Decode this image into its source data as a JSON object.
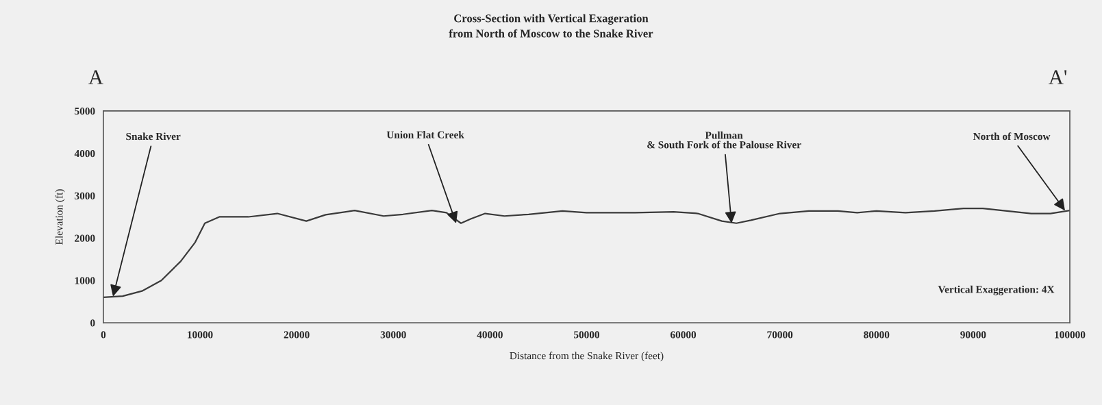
{
  "chart_data": {
    "type": "line",
    "title": "Cross-Section with Vertical Exageration\nfrom North of Moscow to the Snake River",
    "xlabel": "Distance from the Snake River (feet)",
    "ylabel": "Elevation (ft)",
    "x": [
      0,
      2000,
      4000,
      6000,
      8000,
      9500,
      10500,
      12000,
      15000,
      18000,
      21000,
      23000,
      26000,
      29000,
      31000,
      34000,
      35500,
      37000,
      38000,
      39500,
      41500,
      44000,
      47500,
      50000,
      55000,
      59000,
      61500,
      64000,
      65500,
      67000,
      70000,
      73000,
      76000,
      78000,
      80000,
      83000,
      86000,
      89000,
      91000,
      93000,
      96000,
      98000,
      100000
    ],
    "series": [
      {
        "color": "#3a3a3a",
        "values": [
          600,
          630,
          750,
          1000,
          1450,
          1900,
          2350,
          2500,
          2500,
          2580,
          2400,
          2550,
          2650,
          2520,
          2560,
          2650,
          2600,
          2350,
          2450,
          2580,
          2520,
          2560,
          2640,
          2600,
          2600,
          2620,
          2580,
          2400,
          2350,
          2420,
          2580,
          2640,
          2640,
          2600,
          2640,
          2600,
          2640,
          2700,
          2700,
          2650,
          2580,
          2580,
          2650
        ]
      }
    ],
    "xlim": [
      0,
      100000
    ],
    "xticks": [
      0,
      10000,
      20000,
      30000,
      40000,
      50000,
      60000,
      70000,
      80000,
      90000,
      100000
    ],
    "ylim": [
      0,
      5000
    ],
    "yticks": [
      0,
      1000,
      2000,
      3000,
      4000,
      5000
    ],
    "grid": false,
    "legend": false,
    "annotations": [
      "A",
      "A'",
      {
        "text": "Snake River",
        "x": 1000,
        "y": 620
      },
      {
        "text": "Union Flat Creek",
        "x": 36500,
        "y": 2350
      },
      {
        "text": "Pullman\n& South Fork of the Palouse River",
        "x": 65000,
        "y": 2350
      },
      {
        "text": "North of Moscow",
        "x": 99500,
        "y": 2650
      },
      "Vertical Exaggeration: 4X"
    ]
  }
}
